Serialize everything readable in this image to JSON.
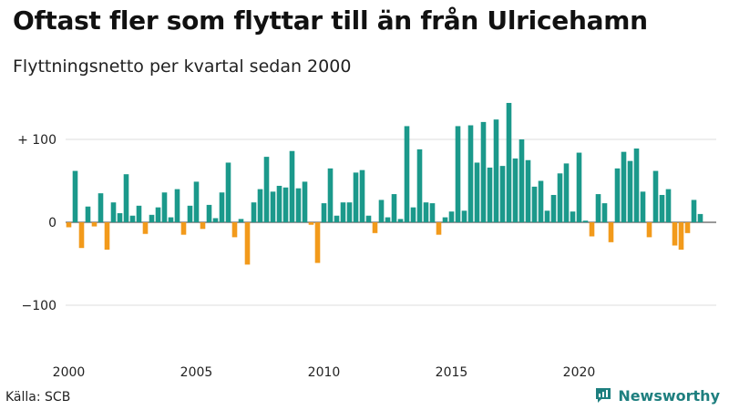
{
  "title": "Oftast fler som flyttar till än från Ulricehamn",
  "subtitle": "Flyttningsnetto per kvartal sedan 2000",
  "source": "Källa: SCB",
  "brand": {
    "name": "Newsworthy",
    "icon": "newsworthy-logo-icon"
  },
  "colors": {
    "positive": "#1b998b",
    "negative": "#f29a1b",
    "grid": "#dddddd",
    "zero": "#333333"
  },
  "chart_data": {
    "type": "bar",
    "x_start": "2000-Q1",
    "x_ticks": [
      "2000",
      "2005",
      "2010",
      "2015",
      "2020"
    ],
    "y_ticks": [
      100,
      0,
      -100
    ],
    "y_tick_labels": [
      "+ 100",
      "0",
      "−100"
    ],
    "ylim": [
      -160,
      160
    ],
    "grid": true,
    "values": [
      -6,
      62,
      -31,
      19,
      -5,
      35,
      -33,
      24,
      11,
      58,
      8,
      20,
      -14,
      9,
      18,
      36,
      6,
      40,
      -15,
      20,
      49,
      -8,
      21,
      5,
      36,
      72,
      -18,
      4,
      -51,
      24,
      40,
      79,
      37,
      44,
      42,
      86,
      41,
      49,
      -3,
      -49,
      23,
      65,
      8,
      24,
      24,
      60,
      63,
      8,
      -13,
      27,
      6,
      34,
      4,
      116,
      18,
      88,
      24,
      23,
      -15,
      6,
      13,
      116,
      14,
      117,
      72,
      121,
      66,
      124,
      68,
      144,
      77,
      100,
      75,
      43,
      50,
      14,
      33,
      59,
      71,
      13,
      84,
      2,
      -17,
      34,
      23,
      -24,
      65,
      85,
      74,
      89,
      37,
      -18,
      62,
      33,
      40,
      -28,
      -33,
      -13,
      27,
      10
    ]
  }
}
